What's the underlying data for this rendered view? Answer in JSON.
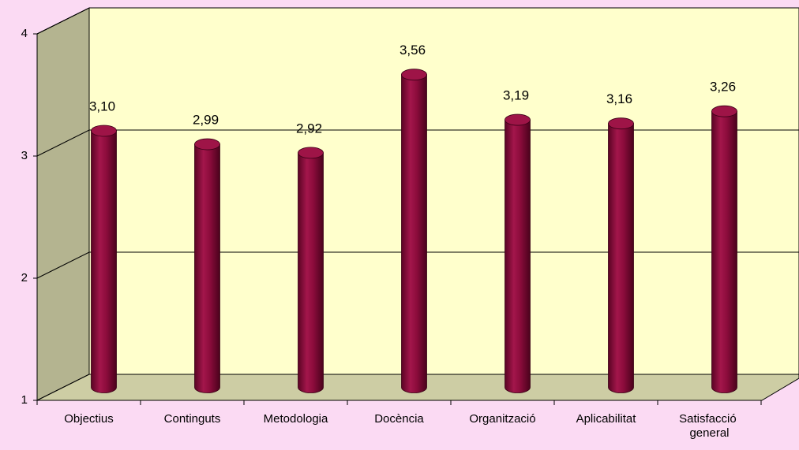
{
  "chart_data": {
    "type": "bar",
    "categories": [
      "Objectius",
      "Continguts",
      "Metodologia",
      "Docència",
      "Organització",
      "Aplicabilitat",
      "Satisfacció general"
    ],
    "values": [
      3.1,
      2.99,
      2.92,
      3.56,
      3.19,
      3.16,
      3.26
    ],
    "value_labels": [
      "3,10",
      "2,99",
      "2,92",
      "3,56",
      "3,19",
      "3,16",
      "3,26"
    ],
    "color": "#8c0c3c",
    "ylim": [
      1,
      4
    ],
    "yticks": [
      1,
      2,
      3,
      4
    ],
    "grid": true
  }
}
